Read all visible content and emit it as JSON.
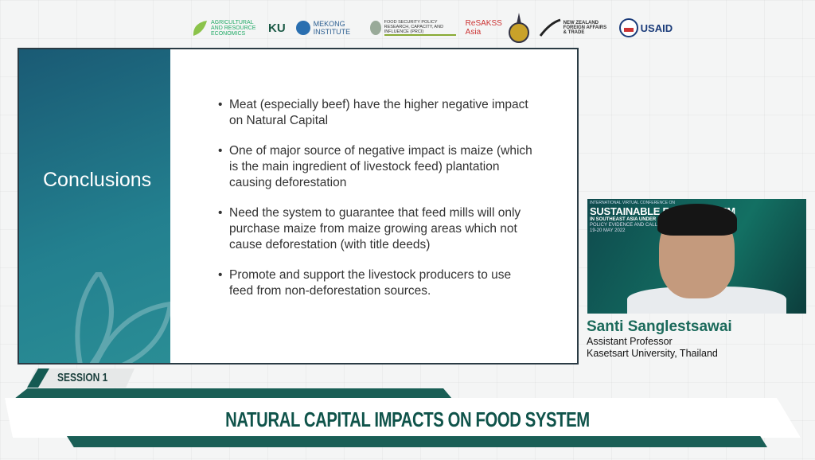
{
  "logos": [
    {
      "name": "Agricultural and Resource Economics, Kasetsart University",
      "text": "AGRICULTURAL AND RESOURCE ECONOMICS"
    },
    {
      "name": "KU",
      "text": "KU"
    },
    {
      "name": "Mekong Institute",
      "text": "MEKONG INSTITUTE"
    },
    {
      "name": "Food Security Policy Research, Capacity, and Influence (PRCI)",
      "text": "FOOD SECURITY POLICY RESEARCH, CAPACITY, AND INFLUENCE (PRCI)"
    },
    {
      "name": "ReSAKSS Asia",
      "text": "ReSAKSS Asia"
    },
    {
      "name": "Seal",
      "text": ""
    },
    {
      "name": "New Zealand Foreign Affairs & Trade",
      "text": "NEW ZEALAND FOREIGN AFFAIRS & TRADE"
    },
    {
      "name": "USAID",
      "text": "USAID"
    }
  ],
  "slide": {
    "title": "Conclusions",
    "bullets": [
      "Meat (especially beef) have the higher negative impact on Natural Capital",
      "One of major source of negative impact is maize (which is the main ingredient of livestock feed) plantation causing deforestation",
      "Need the system to guarantee that feed mills will only purchase maize from maize growing areas which not cause deforestation (with title deeds)",
      "Promote and support the livestock producers to use feed from non-deforestation sources."
    ],
    "colors": {
      "panel": "#1f6f82",
      "text": "#333333"
    }
  },
  "webcam": {
    "bg_line1": "INTERNATIONAL VIRTUAL CONFERENCE ON",
    "bg_line2": "SUSTAINABLE FOOD SYSTEM",
    "bg_line3": "IN SOUTHEAST ASIA UNDER AND BEYOND C",
    "bg_line4": "POLICY EVIDENCE AND CALL FOR A",
    "bg_line5": "19-20 MAY 2022"
  },
  "speaker": {
    "name": "Santi Sanglestsawai",
    "title": "Assistant Professor",
    "affiliation": "Kasetsart University, Thailand"
  },
  "session": {
    "label": "SESSION 1",
    "topic": "NATURAL CAPITAL IMPACTS ON FOOD SYSTEM",
    "accent": "#1a5f56"
  }
}
